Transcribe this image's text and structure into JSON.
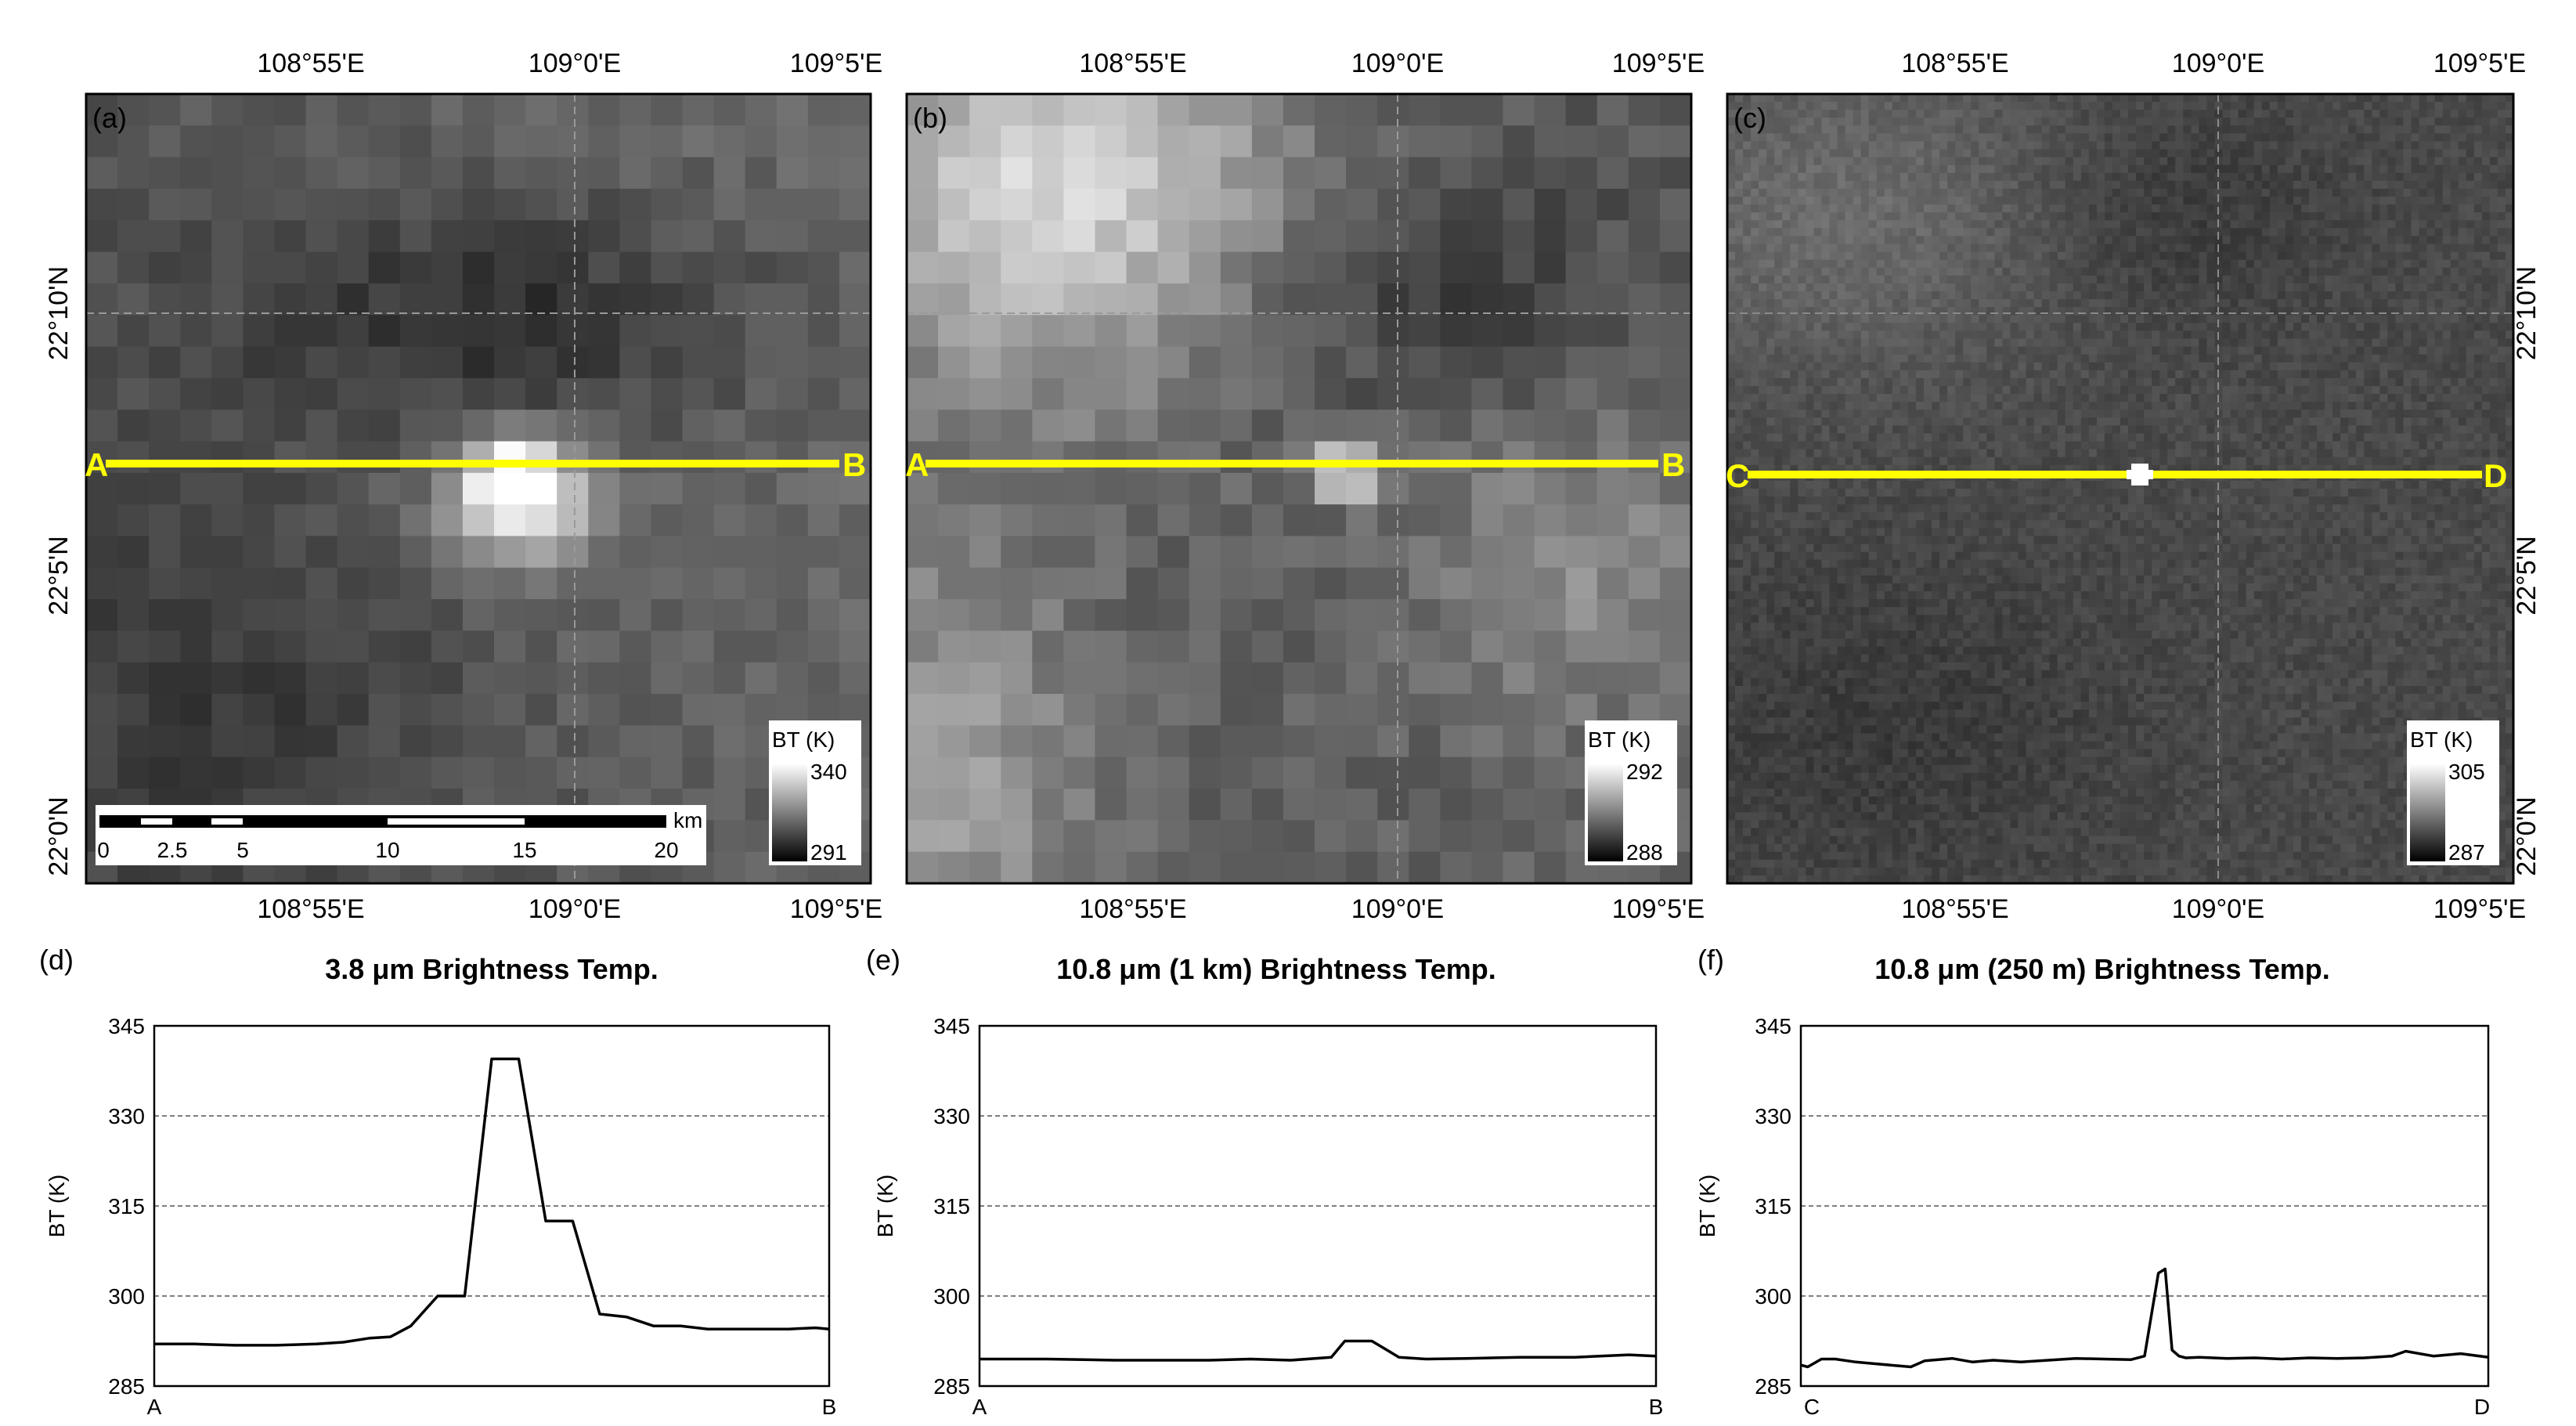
{
  "map_lon_ticks": [
    "108°55'E",
    "109°0'E",
    "109°5'E"
  ],
  "map_lat_ticks": [
    "22°10'N",
    "22°5'N",
    "22°0'N"
  ],
  "map_panels": [
    {
      "label": "(a)",
      "legend": {
        "title": "BT  (K)",
        "max": "340",
        "min": "291"
      },
      "line_start": "A",
      "line_end": "B",
      "colormap": "grayscale"
    },
    {
      "label": "(b)",
      "legend": {
        "title": "BT  (K)",
        "max": "292",
        "min": "288"
      },
      "line_start": "A",
      "line_end": "B",
      "colormap": "grayscale"
    },
    {
      "label": "(c)",
      "legend": {
        "title": "BT  (K)",
        "max": "305",
        "min": "287"
      },
      "line_start": "C",
      "line_end": "D",
      "colormap": "grayscale"
    }
  ],
  "scalebar": {
    "unit": "km",
    "labels": [
      "0",
      "2.5",
      "5",
      "10",
      "15",
      "20"
    ]
  },
  "colors": {
    "transect": "#ffff00",
    "profile_line": "#000000",
    "background": "#ffffff"
  },
  "chart_data": [
    {
      "type": "line",
      "panel": "(d)",
      "title": "3.8 μm Brightness Temp.",
      "xlabel_start": "A",
      "xlabel_end": "B",
      "ylabel": "BT (K)",
      "ylim": [
        285,
        345
      ],
      "yticks": [
        "345",
        "330",
        "315",
        "300",
        "285"
      ],
      "grid": "horizontal dashed",
      "x": [
        0,
        0.06,
        0.12,
        0.18,
        0.24,
        0.28,
        0.32,
        0.35,
        0.38,
        0.42,
        0.46,
        0.5,
        0.54,
        0.58,
        0.62,
        0.66,
        0.7,
        0.74,
        0.78,
        0.82,
        0.86,
        0.9,
        0.94,
        0.98,
        1
      ],
      "values": [
        292,
        292,
        291.8,
        291.8,
        292,
        292.3,
        293,
        293.2,
        295,
        300,
        300,
        339.5,
        339.5,
        312.5,
        312.5,
        297,
        296.5,
        295,
        295,
        294.5,
        294.5,
        294.5,
        294.5,
        294.7,
        294.5
      ]
    },
    {
      "type": "line",
      "panel": "(e)",
      "title": "10.8 μm (1 km) Brightness Temp.",
      "xlabel_start": "A",
      "xlabel_end": "B",
      "ylabel": "BT (K)",
      "ylim": [
        285,
        345
      ],
      "yticks": [
        "345",
        "330",
        "315",
        "300",
        "285"
      ],
      "grid": "horizontal dashed",
      "x": [
        0,
        0.1,
        0.2,
        0.28,
        0.34,
        0.4,
        0.46,
        0.52,
        0.54,
        0.58,
        0.62,
        0.66,
        0.72,
        0.8,
        0.88,
        0.96,
        1
      ],
      "values": [
        289.5,
        289.5,
        289.3,
        289.3,
        289.3,
        289.5,
        289.3,
        289.8,
        292.5,
        292.5,
        289.8,
        289.5,
        289.6,
        289.8,
        289.8,
        290.2,
        290
      ]
    },
    {
      "type": "line",
      "panel": "(f)",
      "title": "10.8 μm (250 m) Brightness Temp.",
      "xlabel_start": "C",
      "xlabel_end": "D",
      "ylabel": "BT (K)",
      "ylim": [
        285,
        345
      ],
      "yticks": [
        "345",
        "330",
        "315",
        "300",
        "285"
      ],
      "grid": "horizontal dashed",
      "x": [
        0,
        0.01,
        0.03,
        0.05,
        0.08,
        0.1,
        0.13,
        0.16,
        0.18,
        0.2,
        0.22,
        0.25,
        0.28,
        0.32,
        0.36,
        0.4,
        0.44,
        0.48,
        0.5,
        0.52,
        0.53,
        0.54,
        0.55,
        0.56,
        0.58,
        0.62,
        0.66,
        0.7,
        0.74,
        0.78,
        0.82,
        0.86,
        0.88,
        0.92,
        0.96,
        1
      ],
      "values": [
        288.5,
        288.2,
        289.5,
        289.5,
        289,
        288.8,
        288.5,
        288.2,
        289.2,
        289.4,
        289.6,
        289,
        289.3,
        289,
        289.3,
        289.6,
        289.5,
        289.4,
        290,
        303.8,
        304.5,
        291,
        290,
        289.7,
        289.8,
        289.6,
        289.7,
        289.5,
        289.7,
        289.6,
        289.7,
        290,
        290.8,
        290,
        290.4,
        289.8
      ]
    }
  ]
}
